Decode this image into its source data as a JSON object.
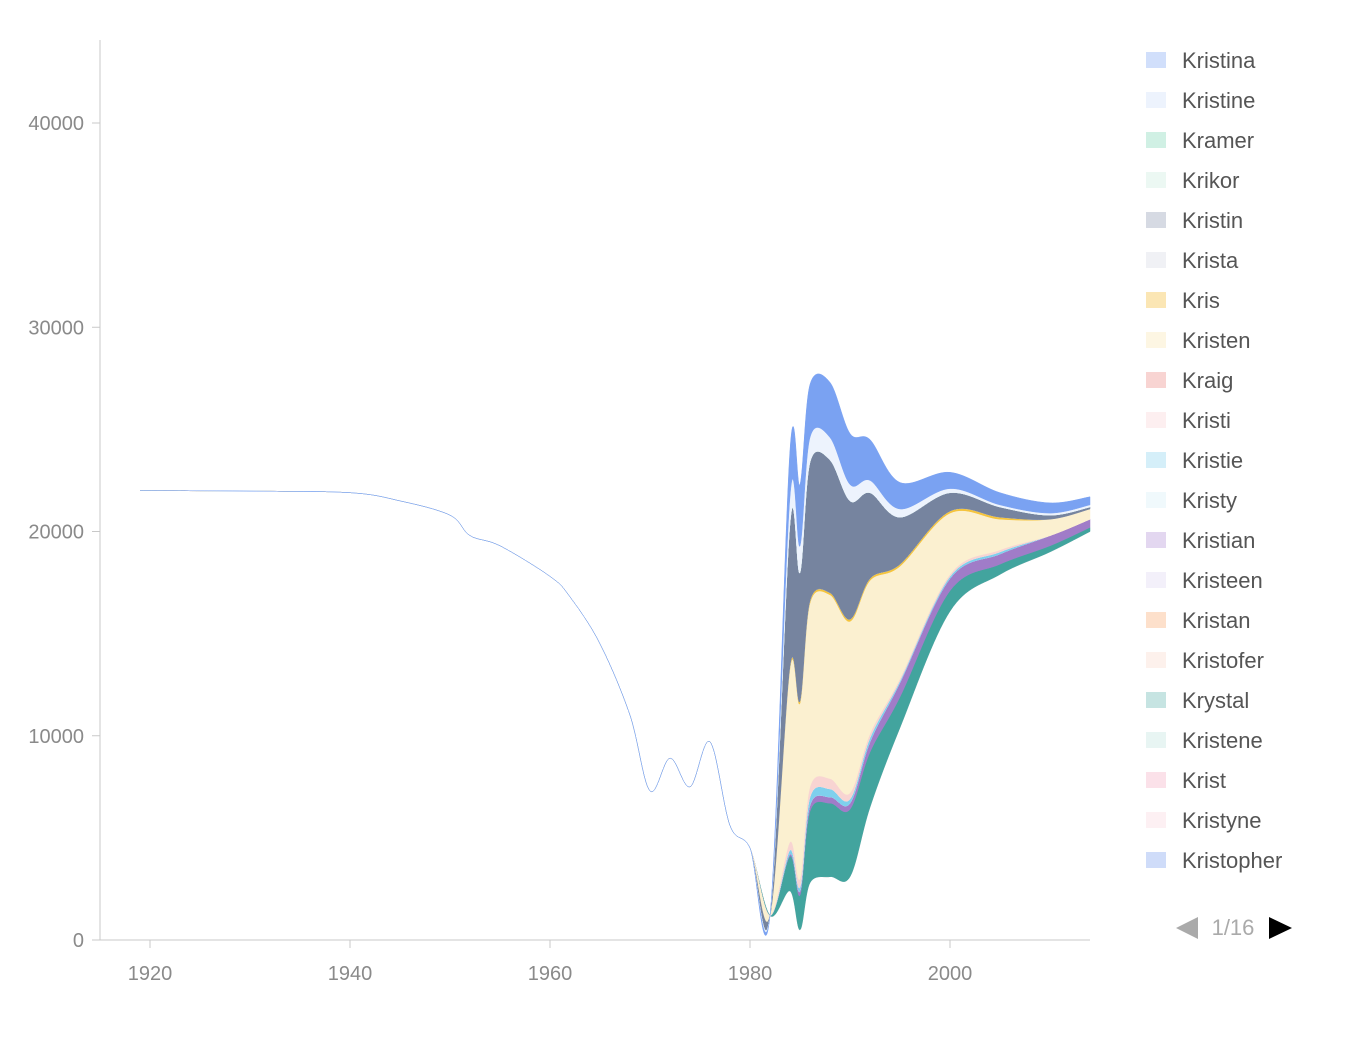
{
  "chart_data": {
    "type": "area",
    "subtype": "streamgraph",
    "title": "",
    "xlabel": "",
    "ylabel": "",
    "xlim": [
      1915,
      2014
    ],
    "ylim": [
      0,
      44000
    ],
    "x_ticks": [
      1920,
      1940,
      1960,
      1980,
      2000
    ],
    "y_ticks": [
      0,
      10000,
      20000,
      30000,
      40000
    ],
    "grid": false,
    "legend_position": "right",
    "years": [
      1919,
      1930,
      1940,
      1945,
      1950,
      1952,
      1955,
      1960,
      1962,
      1965,
      1968,
      1970,
      1972,
      1974,
      1976,
      1978,
      1980,
      1982,
      1984,
      1985,
      1986,
      1988,
      1990,
      1992,
      1995,
      2000,
      2005,
      2010,
      2014
    ],
    "baseline": [
      22000,
      21980,
      21900,
      21500,
      20800,
      19800,
      19300,
      17800,
      16800,
      14500,
      11000,
      7300,
      8900,
      7500,
      9700,
      5600,
      4500,
      1200,
      2400,
      500,
      2800,
      3100,
      3100,
      6500,
      10400,
      16100,
      17900,
      19000,
      20000
    ],
    "series": [
      {
        "name": "Kristopher",
        "color": "#cfdcf9",
        "values": [
          0,
          0,
          0,
          0,
          0,
          0,
          0,
          0,
          0,
          0,
          0,
          0,
          0,
          0,
          0,
          0,
          0,
          0,
          0,
          0,
          0,
          0,
          0,
          0,
          0,
          0,
          0,
          0,
          0
        ]
      },
      {
        "name": "Kristyne",
        "color": "#fdf0f3",
        "values": [
          0,
          0,
          0,
          0,
          0,
          0,
          0,
          0,
          0,
          0,
          0,
          0,
          0,
          0,
          0,
          0,
          0,
          0,
          0,
          0,
          0,
          0,
          0,
          0,
          0,
          0,
          0,
          0,
          0
        ]
      },
      {
        "name": "Krist",
        "color": "#fbe1e9",
        "values": [
          0,
          0,
          0,
          0,
          0,
          0,
          0,
          0,
          0,
          0,
          0,
          0,
          0,
          0,
          0,
          0,
          0,
          0,
          0,
          0,
          0,
          0,
          0,
          0,
          0,
          0,
          0,
          0,
          0
        ]
      },
      {
        "name": "Kristene",
        "color": "#e8f5f3",
        "values": [
          0,
          0,
          0,
          0,
          0,
          0,
          0,
          0,
          0,
          0,
          0,
          0,
          0,
          0,
          0,
          0,
          0,
          0,
          0,
          0,
          0,
          0,
          0,
          0,
          0,
          0,
          0,
          0,
          0
        ]
      },
      {
        "name": "Kristofer",
        "color": "#fdf1ec",
        "values": [
          0,
          0,
          0,
          0,
          0,
          0,
          0,
          0,
          0,
          0,
          0,
          0,
          0,
          0,
          0,
          0,
          0,
          0,
          0,
          0,
          0,
          0,
          0,
          0,
          0,
          0,
          0,
          0,
          0
        ]
      },
      {
        "name": "Kristan",
        "color": "#fde0cb",
        "values": [
          0,
          0,
          0,
          0,
          0,
          0,
          0,
          0,
          0,
          0,
          0,
          0,
          0,
          0,
          0,
          0,
          0,
          0,
          0,
          0,
          0,
          0,
          0,
          0,
          0,
          0,
          0,
          0,
          0
        ]
      },
      {
        "name": "Kristeen",
        "color": "#f3f0fa",
        "values": [
          0,
          0,
          0,
          0,
          0,
          0,
          0,
          0,
          0,
          0,
          0,
          0,
          0,
          0,
          0,
          0,
          0,
          0,
          0,
          0,
          0,
          0,
          0,
          0,
          0,
          0,
          0,
          0,
          0
        ]
      },
      {
        "name": "Krystal",
        "color": "#42a49e",
        "values": [
          0,
          0,
          0,
          0,
          0,
          0,
          0,
          0,
          0,
          0,
          0,
          0,
          0,
          0,
          0,
          0,
          0,
          0,
          1700,
          1700,
          3500,
          3600,
          3300,
          2700,
          1500,
          1000,
          500,
          300,
          200
        ]
      },
      {
        "name": "Kristian",
        "color": "#a07cc8",
        "values": [
          0,
          0,
          0,
          0,
          0,
          0,
          0,
          0,
          0,
          0,
          0,
          0,
          0,
          0,
          0,
          0,
          0,
          0,
          100,
          200,
          300,
          300,
          300,
          500,
          700,
          600,
          500,
          500,
          400
        ]
      },
      {
        "name": "Kristy",
        "color": "#f0f9fc",
        "values": [
          0,
          0,
          0,
          0,
          0,
          0,
          0,
          0,
          0,
          0,
          0,
          0,
          0,
          0,
          0,
          0,
          0,
          0,
          0,
          0,
          0,
          0,
          0,
          0,
          0,
          0,
          0,
          0,
          0
        ]
      },
      {
        "name": "Kristie",
        "color": "#7ed0ed",
        "values": [
          0,
          0,
          0,
          0,
          0,
          0,
          0,
          0,
          0,
          0,
          0,
          0,
          0,
          0,
          0,
          0,
          0,
          0,
          200,
          200,
          400,
          400,
          200,
          200,
          100,
          100,
          100,
          0,
          0
        ]
      },
      {
        "name": "Kristi",
        "color": "#fdeff0",
        "values": [
          0,
          0,
          0,
          0,
          0,
          0,
          0,
          0,
          0,
          0,
          0,
          0,
          0,
          0,
          0,
          0,
          0,
          0,
          0,
          0,
          0,
          0,
          0,
          0,
          0,
          0,
          0,
          0,
          0
        ]
      },
      {
        "name": "Kraig",
        "color": "#f8d4d2",
        "values": [
          0,
          0,
          0,
          0,
          0,
          0,
          0,
          0,
          0,
          0,
          0,
          0,
          0,
          0,
          0,
          0,
          0,
          0,
          400,
          400,
          500,
          500,
          300,
          200,
          100,
          100,
          100,
          0,
          0
        ]
      },
      {
        "name": "Kristen",
        "color": "#fbf0d0",
        "values": [
          0,
          0,
          0,
          0,
          0,
          0,
          0,
          0,
          0,
          0,
          0,
          0,
          0,
          0,
          0,
          0,
          0,
          0,
          8500,
          8600,
          9000,
          9000,
          8400,
          7500,
          5500,
          3000,
          1500,
          800,
          500
        ]
      },
      {
        "name": "Kris",
        "color": "#f5c43c",
        "values": [
          0,
          0,
          0,
          0,
          0,
          0,
          0,
          0,
          0,
          0,
          0,
          0,
          0,
          0,
          0,
          0,
          0,
          0,
          100,
          100,
          100,
          100,
          100,
          100,
          100,
          100,
          100,
          0,
          0
        ]
      },
      {
        "name": "Krista",
        "color": "#f0f1f5",
        "values": [
          0,
          0,
          0,
          0,
          0,
          0,
          0,
          0,
          0,
          0,
          0,
          0,
          0,
          0,
          0,
          0,
          0,
          0,
          0,
          0,
          0,
          0,
          0,
          0,
          0,
          0,
          0,
          0,
          0
        ]
      },
      {
        "name": "Kristin",
        "color": "#76849f",
        "values": [
          0,
          0,
          0,
          0,
          0,
          0,
          0,
          0,
          0,
          0,
          0,
          0,
          0,
          0,
          0,
          0,
          0,
          0,
          7000,
          6300,
          6800,
          6500,
          5800,
          4200,
          2300,
          900,
          500,
          200,
          100
        ]
      },
      {
        "name": "Krikor",
        "color": "#ecf8f3",
        "values": [
          0,
          0,
          0,
          0,
          0,
          0,
          0,
          0,
          0,
          0,
          0,
          0,
          0,
          0,
          0,
          0,
          0,
          0,
          0,
          0,
          0,
          0,
          0,
          0,
          0,
          0,
          0,
          0,
          0
        ]
      },
      {
        "name": "Kramer",
        "color": "#d0f0e4",
        "values": [
          0,
          0,
          0,
          0,
          0,
          0,
          0,
          0,
          0,
          0,
          0,
          0,
          0,
          0,
          0,
          0,
          0,
          0,
          0,
          0,
          0,
          0,
          0,
          0,
          0,
          0,
          0,
          0,
          0
        ]
      },
      {
        "name": "Kristine",
        "color": "#edf3fd",
        "values": [
          0,
          0,
          0,
          0,
          0,
          0,
          0,
          0,
          0,
          0,
          0,
          0,
          0,
          0,
          0,
          0,
          0,
          0,
          1300,
          1300,
          1200,
          1100,
          800,
          600,
          400,
          200,
          100,
          100,
          100
        ]
      },
      {
        "name": "Kristina",
        "color": "#7aa2f2",
        "values": [
          0,
          0,
          0,
          0,
          0,
          0,
          0,
          0,
          0,
          0,
          0,
          0,
          0,
          0,
          0,
          0,
          0,
          0,
          2300,
          3000,
          2600,
          2700,
          2500,
          2000,
          1300,
          800,
          600,
          500,
          400
        ]
      }
    ]
  },
  "legend": {
    "items": [
      {
        "name": "Kristina",
        "color": "#d1dffb"
      },
      {
        "name": "Kristine",
        "color": "#edf3fd"
      },
      {
        "name": "Kramer",
        "color": "#d0f0e4"
      },
      {
        "name": "Krikor",
        "color": "#ecf8f3"
      },
      {
        "name": "Kristin",
        "color": "#d6dae3"
      },
      {
        "name": "Krista",
        "color": "#f0f1f5"
      },
      {
        "name": "Kris",
        "color": "#fbe6b4"
      },
      {
        "name": "Kristen",
        "color": "#fdf6e3"
      },
      {
        "name": "Kraig",
        "color": "#f8d4d2"
      },
      {
        "name": "Kristi",
        "color": "#fdeff0"
      },
      {
        "name": "Kristie",
        "color": "#d5eff9"
      },
      {
        "name": "Kristy",
        "color": "#f0f9fc"
      },
      {
        "name": "Kristian",
        "color": "#e3d7f0"
      },
      {
        "name": "Kristeen",
        "color": "#f3f0fa"
      },
      {
        "name": "Kristan",
        "color": "#fde0cb"
      },
      {
        "name": "Kristofer",
        "color": "#fdf1ec"
      },
      {
        "name": "Krystal",
        "color": "#c6e4e2"
      },
      {
        "name": "Kristene",
        "color": "#e8f5f3"
      },
      {
        "name": "Krist",
        "color": "#fbe1e9"
      },
      {
        "name": "Kristyne",
        "color": "#fdf0f3"
      },
      {
        "name": "Kristopher",
        "color": "#cfdcf9"
      }
    ],
    "pager": {
      "current": "1",
      "total": "16",
      "label": "1/16"
    }
  },
  "colors": {
    "axis": "#c8c8c8",
    "tick_text": "#8a8a8a",
    "legend_text": "#555555",
    "pager_active": "#000000",
    "pager_inactive": "#aaaaaa"
  }
}
